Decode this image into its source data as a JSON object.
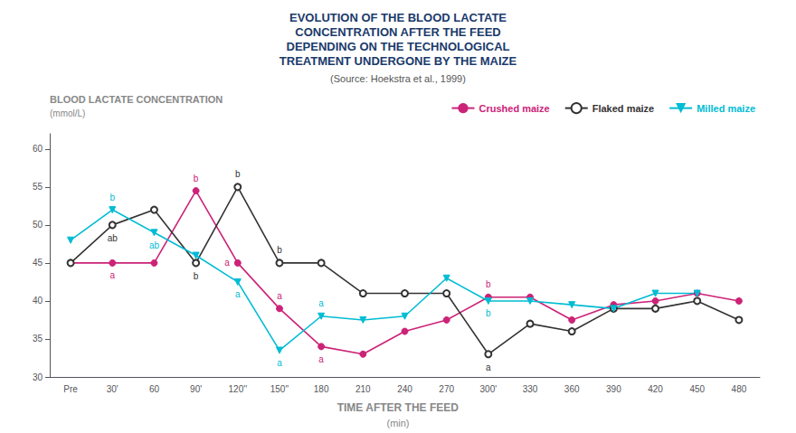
{
  "chart_data": {
    "type": "line",
    "title": "EVOLUTION OF THE BLOOD LACTATE\nCONCENTRATION AFTER THE FEED\nDEPENDING ON THE TECHNOLOGICAL\nTREATMENT UNDERGONE BY THE MAIZE",
    "title_color": "#1a3a6b",
    "subtitle": "(Source: Hoekstra et al., 1999)",
    "subtitle_color": "#555555",
    "ylabel": "BLOOD LACTATE CONCENTRATION",
    "ylabel_unit": "(mmol/L)",
    "xlabel": "TIME AFTER THE FEED",
    "xlabel_unit": "(min)",
    "categories": [
      "Pre",
      "30'",
      "60",
      "90'",
      "120''",
      "150''",
      "180",
      "210",
      "240",
      "270",
      "300'",
      "330",
      "360",
      "390",
      "420",
      "450",
      "480"
    ],
    "series": [
      {
        "name": "Crushed maize",
        "color": "#cc2277",
        "marker": "circle",
        "values": [
          45,
          45,
          45,
          54.5,
          45,
          39,
          34,
          33,
          36,
          37.5,
          40.5,
          40.5,
          37.5,
          39.5,
          40,
          41,
          40
        ]
      },
      {
        "name": "Flaked maize",
        "color": "#333333",
        "marker": "circle-open",
        "values": [
          45,
          50,
          52,
          45,
          55,
          45,
          45,
          41,
          41,
          41,
          33,
          37,
          36,
          39,
          39,
          40,
          37.5
        ]
      },
      {
        "name": "Milled maize",
        "color": "#00bcd4",
        "marker": "triangle-down",
        "values": [
          48,
          52,
          49,
          46,
          42.5,
          33.5,
          38,
          37.5,
          38,
          43,
          40,
          40,
          39.5,
          39,
          41,
          41,
          null
        ]
      }
    ],
    "annotations": [
      {
        "series": "Crushed maize",
        "x": "30'",
        "text": "a"
      },
      {
        "series": "Crushed maize",
        "x": "90'",
        "text": "b"
      },
      {
        "series": "Crushed maize",
        "x": "120''",
        "text": "a"
      },
      {
        "series": "Crushed maize",
        "x": "150''",
        "text": "a"
      },
      {
        "series": "Crushed maize",
        "x": "180",
        "text": "a"
      },
      {
        "series": "Crushed maize",
        "x": "300'",
        "text": "b"
      },
      {
        "series": "Flaked maize",
        "x": "30'",
        "text": "ab"
      },
      {
        "series": "Flaked maize",
        "x": "90'",
        "text": "b"
      },
      {
        "series": "Flaked maize",
        "x": "120''",
        "text": "b"
      },
      {
        "series": "Flaked maize",
        "x": "150''",
        "text": "b"
      },
      {
        "series": "Flaked maize",
        "x": "300'",
        "text": "a"
      },
      {
        "series": "Milled maize",
        "x": "30'",
        "text": "b"
      },
      {
        "series": "Milled maize",
        "x": "60",
        "text": "ab"
      },
      {
        "series": "Milled maize",
        "x": "120''",
        "text": "a"
      },
      {
        "series": "Milled maize",
        "x": "150''",
        "text": "a"
      },
      {
        "series": "Milled maize",
        "x": "180",
        "text": "a"
      },
      {
        "series": "Milled maize",
        "x": "300'",
        "text": "b"
      }
    ],
    "ylim": [
      30,
      62
    ],
    "yticks": [
      30,
      35,
      40,
      45,
      50,
      55,
      60
    ],
    "grid": false,
    "legend": "upper right"
  }
}
